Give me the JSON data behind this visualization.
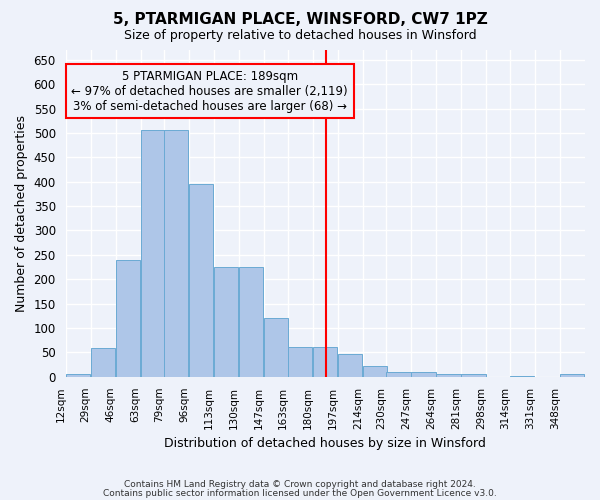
{
  "title": "5, PTARMIGAN PLACE, WINSFORD, CW7 1PZ",
  "subtitle": "Size of property relative to detached houses in Winsford",
  "xlabel": "Distribution of detached houses by size in Winsford",
  "ylabel": "Number of detached properties",
  "footer1": "Contains HM Land Registry data © Crown copyright and database right 2024.",
  "footer2": "Contains public sector information licensed under the Open Government Licence v3.0.",
  "bins": [
    12,
    29,
    46,
    63,
    79,
    96,
    113,
    130,
    147,
    163,
    180,
    197,
    214,
    230,
    247,
    264,
    281,
    298,
    314,
    331,
    348
  ],
  "bar_heights": [
    5,
    60,
    240,
    505,
    505,
    395,
    225,
    225,
    120,
    62,
    62,
    47,
    22,
    10,
    10,
    5,
    5,
    0,
    2,
    0,
    5
  ],
  "bar_color": "#aec6e8",
  "bar_edge_color": "#6aaad4",
  "vline_x": 189,
  "vline_color": "red",
  "annotation_title": "5 PTARMIGAN PLACE: 189sqm",
  "annotation_line1": "← 97% of detached houses are smaller (2,119)",
  "annotation_line2": "3% of semi-detached houses are larger (68) →",
  "ylim": [
    0,
    670
  ],
  "yticks": [
    0,
    50,
    100,
    150,
    200,
    250,
    300,
    350,
    400,
    450,
    500,
    550,
    600,
    650
  ],
  "bg_color": "#eef2fa",
  "grid_color": "#ffffff",
  "bin_width": 17
}
